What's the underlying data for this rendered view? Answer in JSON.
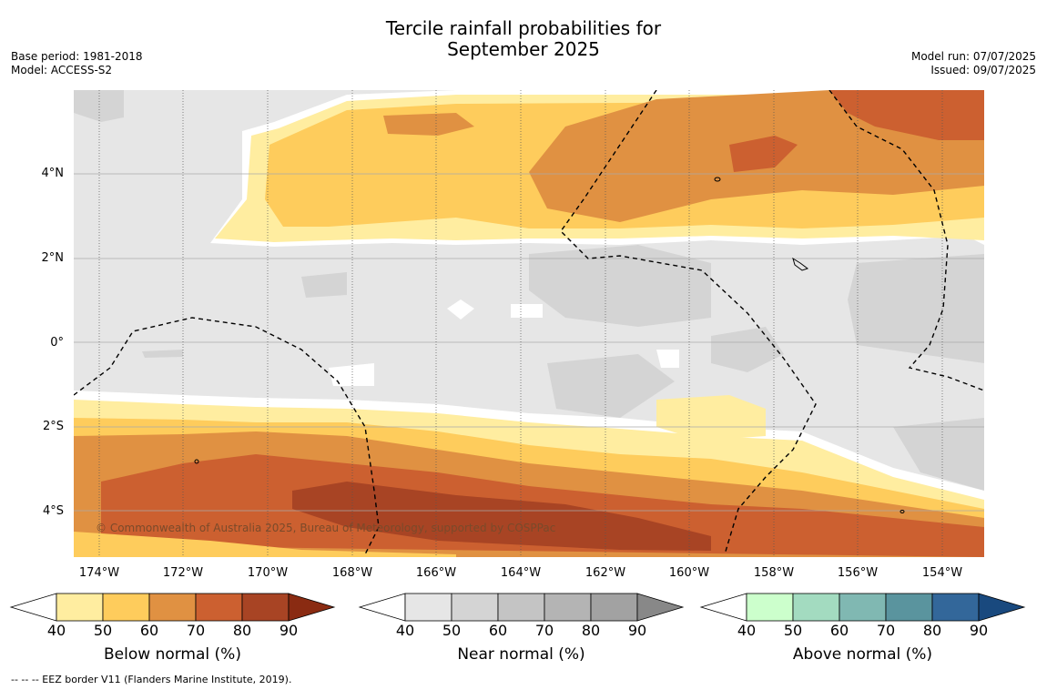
{
  "title_line1": "Tercile rainfall probabilities for",
  "title_line2": "September 2025",
  "meta_left": [
    "Base period: 1981-2018",
    "Model: ACCESS-S2"
  ],
  "meta_right": [
    "Model run: 07/07/2025",
    "Issued: 09/07/2025"
  ],
  "copyright": "© Commonwealth of Australia 2025, Bureau of Meteorology, supported by COSPPac",
  "y_ticks": [
    "4°N",
    "2°N",
    "0°",
    "2°S",
    "4°S"
  ],
  "x_ticks": [
    "174°W",
    "172°W",
    "170°W",
    "168°W",
    "166°W",
    "164°W",
    "162°W",
    "160°W",
    "158°W",
    "156°W",
    "154°W"
  ],
  "colorbars": [
    {
      "label": "Below normal (%)",
      "ticks": [
        "40",
        "50",
        "60",
        "70",
        "80",
        "90"
      ],
      "colors": [
        "#ffffff",
        "#ffeda0",
        "#fecc5c",
        "#e09142",
        "#cc6030",
        "#a84424",
        "#8a2b12"
      ]
    },
    {
      "label": "Near normal (%)",
      "ticks": [
        "40",
        "50",
        "60",
        "70",
        "80",
        "90"
      ],
      "colors": [
        "#ffffff",
        "#e6e6e6",
        "#d4d4d4",
        "#c4c4c4",
        "#b4b4b4",
        "#a2a2a2",
        "#888888"
      ]
    },
    {
      "label": "Above normal (%)",
      "ticks": [
        "40",
        "50",
        "60",
        "70",
        "80",
        "90"
      ],
      "colors": [
        "#ffffff",
        "#ccffcc",
        "#a3dbc0",
        "#80b8b2",
        "#5a949e",
        "#33679a",
        "#19497e"
      ]
    }
  ],
  "footnote": "--  --  -- EEZ border V11 (Flanders Marine Institute, 2019)."
}
